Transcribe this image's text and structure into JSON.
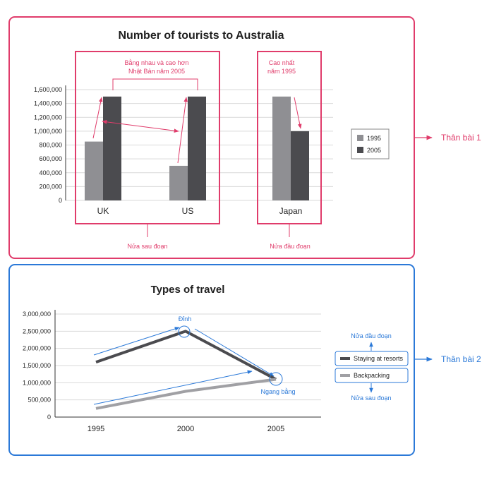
{
  "colors": {
    "pink": "#e03c6b",
    "blue": "#2b79d8",
    "bar_1995": "#8f8f93",
    "bar_2005": "#4b4b4f",
    "line_resorts": "#4b4b4f",
    "line_backpacking": "#a0a0a4",
    "grid": "#d9d9d9",
    "text": "#1f1f1f"
  },
  "side_labels": {
    "panel1": "Thân bài 1",
    "panel2": "Thân bài 2"
  },
  "chart_data": [
    {
      "type": "bar",
      "title": "Number of tourists to Australia",
      "categories": [
        "UK",
        "US",
        "Japan"
      ],
      "series": [
        {
          "name": "1995",
          "values": [
            850000,
            500000,
            1500000
          ]
        },
        {
          "name": "2005",
          "values": [
            1500000,
            1500000,
            1000000
          ]
        }
      ],
      "ylim": [
        0,
        1600000
      ],
      "yticks": [
        "0",
        "200,000",
        "400,000",
        "600,000",
        "800,000",
        "1,000,000",
        "1,200,000",
        "1,400,000",
        "1,600,000"
      ],
      "grid": true,
      "legend": "right",
      "annotations": {
        "equal_note_line1": "Bằng nhau và cao hơn",
        "equal_note_line2": "Nhật Bản năm 2005",
        "highest_note_line1": "Cao nhất",
        "highest_note_line2": "năm 1995",
        "group_left_caption": "Nửa sau đoạn",
        "group_right_caption": "Nửa đầu đoạn"
      }
    },
    {
      "type": "line",
      "title": "Types of travel",
      "x": [
        "1995",
        "2000",
        "2005"
      ],
      "series": [
        {
          "name": "Staying at resorts",
          "values": [
            1600000,
            2500000,
            1100000
          ]
        },
        {
          "name": "Backpacking",
          "values": [
            250000,
            750000,
            1100000
          ]
        }
      ],
      "ylim": [
        0,
        3000000
      ],
      "yticks": [
        "0",
        "500,000",
        "1,000,000",
        "1,500,000",
        "2,000,000",
        "2,500,000",
        "3,000,000"
      ],
      "grid": true,
      "legend": "right",
      "annotations": {
        "peak_label": "Đỉnh",
        "level_label": "Ngang bằng",
        "legend_top_note": "Nửa đầu đoạn",
        "legend_bottom_note": "Nửa sau đoạn"
      }
    }
  ]
}
